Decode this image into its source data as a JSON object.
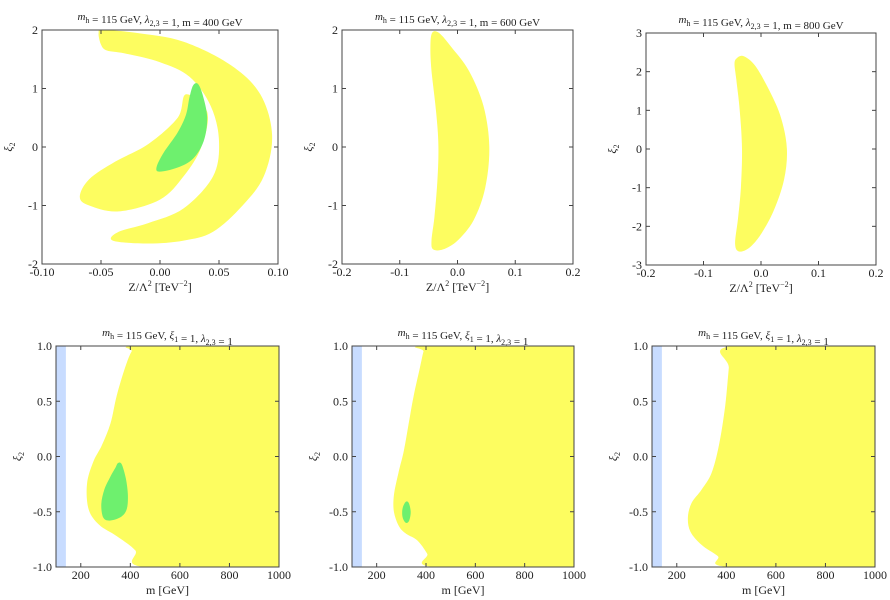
{
  "chart_data": [
    {
      "type": "contour",
      "title": "m_h = 115 GeV, λ_2,3 = 1, m = 400 GeV",
      "xlabel": "Z/Λ² [TeV⁻²]",
      "ylabel": "ξ2",
      "xlim": [
        -0.1,
        0.1
      ],
      "ylim": [
        -2,
        2
      ],
      "xticks": [
        "-0.10",
        "-0.05",
        "0.00",
        "0.05",
        "0.10"
      ],
      "xtick_values": [
        -0.1,
        -0.05,
        0,
        0.05,
        0.1
      ],
      "yticks": [
        "-2",
        "-1",
        "0",
        "1",
        "2"
      ],
      "ytick_values": [
        -2,
        -1,
        0,
        1,
        2
      ],
      "regions": [
        {
          "color": "#fdfd60",
          "points": [
            [
              -0.048,
              2.0
            ],
            [
              -0.02,
              1.95
            ],
            [
              0.02,
              1.8
            ],
            [
              0.06,
              1.4
            ],
            [
              0.085,
              0.9
            ],
            [
              0.095,
              0.2
            ],
            [
              0.088,
              -0.5
            ],
            [
              0.07,
              -1.0
            ],
            [
              0.045,
              -1.45
            ],
            [
              0.02,
              -1.6
            ],
            [
              -0.01,
              -1.65
            ],
            [
              -0.04,
              -1.6
            ],
            [
              -0.035,
              -1.45
            ],
            [
              -0.01,
              -1.3
            ],
            [
              0.02,
              -1.05
            ],
            [
              0.045,
              -0.5
            ],
            [
              0.05,
              0.1
            ],
            [
              0.043,
              0.7
            ],
            [
              0.025,
              1.2
            ],
            [
              0.0,
              1.45
            ],
            [
              -0.03,
              1.6
            ],
            [
              -0.045,
              1.65
            ],
            [
              -0.05,
              1.75
            ],
            [
              -0.052,
              1.95
            ]
          ]
        },
        {
          "color": "#fdfd60",
          "points": [
            [
              -0.068,
              -0.85
            ],
            [
              -0.06,
              -0.55
            ],
            [
              -0.038,
              -0.25
            ],
            [
              -0.01,
              0.05
            ],
            [
              0.015,
              0.5
            ],
            [
              0.022,
              0.9
            ],
            [
              0.04,
              0.6
            ],
            [
              0.035,
              0.0
            ],
            [
              0.02,
              -0.5
            ],
            [
              0.0,
              -0.9
            ],
            [
              -0.035,
              -1.1
            ],
            [
              -0.06,
              -1.0
            ]
          ]
        },
        {
          "color": "#6ef06e",
          "points": [
            [
              0.028,
              1.05
            ],
            [
              0.032,
              1.08
            ],
            [
              0.036,
              0.9
            ],
            [
              0.04,
              0.5
            ],
            [
              0.037,
              0.1
            ],
            [
              0.028,
              -0.2
            ],
            [
              0.015,
              -0.35
            ],
            [
              0.0,
              -0.42
            ],
            [
              -0.003,
              -0.35
            ],
            [
              0.003,
              -0.1
            ],
            [
              0.015,
              0.25
            ],
            [
              0.022,
              0.55
            ],
            [
              0.025,
              0.85
            ]
          ]
        }
      ]
    },
    {
      "type": "contour",
      "title": "m_h = 115 GeV, λ_2,3 = 1, m = 600 GeV",
      "xlabel": "Z/Λ² [TeV⁻²]",
      "ylabel": "ξ2",
      "xlim": [
        -0.2,
        0.2
      ],
      "ylim": [
        -2,
        2
      ],
      "xticks": [
        "-0.2",
        "-0.1",
        "0.0",
        "0.1",
        "0.2"
      ],
      "xtick_values": [
        -0.2,
        -0.1,
        0,
        0.1,
        0.2
      ],
      "yticks": [
        "-2",
        "-1",
        "0",
        "1",
        "2"
      ],
      "ytick_values": [
        -2,
        -1,
        0,
        1,
        2
      ],
      "regions": [
        {
          "color": "#fdfd60",
          "points": [
            [
              -0.044,
              1.95
            ],
            [
              -0.032,
              1.95
            ],
            [
              -0.01,
              1.7
            ],
            [
              0.02,
              1.3
            ],
            [
              0.045,
              0.7
            ],
            [
              0.055,
              0.0
            ],
            [
              0.048,
              -0.7
            ],
            [
              0.028,
              -1.25
            ],
            [
              0.0,
              -1.6
            ],
            [
              -0.025,
              -1.75
            ],
            [
              -0.042,
              -1.75
            ],
            [
              -0.045,
              -1.6
            ],
            [
              -0.04,
              -1.2
            ],
            [
              -0.035,
              -0.6
            ],
            [
              -0.033,
              0.0
            ],
            [
              -0.037,
              0.6
            ],
            [
              -0.045,
              1.3
            ],
            [
              -0.047,
              1.7
            ]
          ]
        }
      ]
    },
    {
      "type": "contour",
      "title": "m_h = 115 GeV, λ_2,3 = 1, m = 800 GeV",
      "xlabel": "Z/Λ² [TeV⁻²]",
      "ylabel": "ξ2",
      "xlim": [
        -0.2,
        0.2
      ],
      "ylim": [
        -3,
        3
      ],
      "xticks": [
        "-0.2",
        "-0.1",
        "0.0",
        "0.1",
        "0.2"
      ],
      "xtick_values": [
        -0.2,
        -0.1,
        0,
        0.1,
        0.2
      ],
      "yticks": [
        "-3",
        "-2",
        "-1",
        "0",
        "1",
        "2",
        "3"
      ],
      "ytick_values": [
        -3,
        -2,
        -1,
        0,
        1,
        2,
        3
      ],
      "regions": [
        {
          "color": "#fdfd60",
          "points": [
            [
              -0.042,
              2.35
            ],
            [
              -0.03,
              2.4
            ],
            [
              -0.01,
              2.15
            ],
            [
              0.015,
              1.5
            ],
            [
              0.035,
              0.8
            ],
            [
              0.045,
              0.0
            ],
            [
              0.04,
              -0.8
            ],
            [
              0.022,
              -1.6
            ],
            [
              0.0,
              -2.2
            ],
            [
              -0.02,
              -2.55
            ],
            [
              -0.038,
              -2.65
            ],
            [
              -0.045,
              -2.45
            ],
            [
              -0.04,
              -1.8
            ],
            [
              -0.035,
              -1.0
            ],
            [
              -0.033,
              0.0
            ],
            [
              -0.037,
              1.0
            ],
            [
              -0.043,
              1.8
            ],
            [
              -0.046,
              2.2
            ]
          ]
        }
      ]
    },
    {
      "type": "contour",
      "title": "m_h = 115 GeV, ξ_1 = 1, λ_2,3 = 1",
      "xlabel": "m [GeV]",
      "ylabel": "ξ2",
      "xlim": [
        100,
        1000
      ],
      "ylim": [
        -1,
        1
      ],
      "xticks": [
        "200",
        "400",
        "600",
        "800",
        "1000"
      ],
      "xtick_values": [
        200,
        400,
        600,
        800,
        1000
      ],
      "yticks": [
        "-1.0",
        "-0.5",
        "0.0",
        "0.5",
        "1.0"
      ],
      "ytick_values": [
        -1,
        -0.5,
        0,
        0.5,
        1
      ],
      "regions": [
        {
          "color": "#c8dcff",
          "points": [
            [
              100,
              -1
            ],
            [
              140,
              -1
            ],
            [
              140,
              1
            ],
            [
              100,
              1
            ]
          ]
        },
        {
          "color": "#fdfd60",
          "points": [
            [
              430,
              1
            ],
            [
              1000,
              1
            ],
            [
              1000,
              -1
            ],
            [
              455,
              -1
            ],
            [
              420,
              -0.85
            ],
            [
              345,
              -0.72
            ],
            [
              275,
              -0.62
            ],
            [
              232,
              -0.48
            ],
            [
              225,
              -0.25
            ],
            [
              250,
              -0.05
            ],
            [
              285,
              0.1
            ],
            [
              320,
              0.3
            ],
            [
              345,
              0.55
            ],
            [
              378,
              0.8
            ],
            [
              405,
              0.95
            ]
          ]
        },
        {
          "color": "#6ef06e",
          "points": [
            [
              350,
              -0.06
            ],
            [
              365,
              -0.07
            ],
            [
              382,
              -0.2
            ],
            [
              390,
              -0.35
            ],
            [
              385,
              -0.48
            ],
            [
              360,
              -0.55
            ],
            [
              315,
              -0.58
            ],
            [
              290,
              -0.55
            ],
            [
              283,
              -0.43
            ],
            [
              295,
              -0.3
            ],
            [
              320,
              -0.18
            ],
            [
              340,
              -0.1
            ]
          ]
        }
      ]
    },
    {
      "type": "contour",
      "title": "m_h = 115 GeV, ξ_1 = 1, λ_2,3 = 1",
      "xlabel": "m [GeV]",
      "ylabel": "ξ2",
      "xlim": [
        100,
        1000
      ],
      "ylim": [
        -1,
        1
      ],
      "xticks": [
        "200",
        "400",
        "600",
        "800",
        "1000"
      ],
      "xtick_values": [
        200,
        400,
        600,
        800,
        1000
      ],
      "yticks": [
        "-1.0",
        "-0.5",
        "0.0",
        "0.5",
        "1.0"
      ],
      "ytick_values": [
        -1,
        -0.5,
        0,
        0.5,
        1
      ],
      "regions": [
        {
          "color": "#c8dcff",
          "points": [
            [
              100,
              -1
            ],
            [
              140,
              -1
            ],
            [
              140,
              1
            ],
            [
              100,
              1
            ]
          ]
        },
        {
          "color": "#fdfd60",
          "points": [
            [
              402,
              1
            ],
            [
              1000,
              1
            ],
            [
              1000,
              -1
            ],
            [
              432,
              -1
            ],
            [
              405,
              -0.88
            ],
            [
              365,
              -0.76
            ],
            [
              320,
              -0.7
            ],
            [
              290,
              -0.63
            ],
            [
              270,
              -0.5
            ],
            [
              270,
              -0.35
            ],
            [
              288,
              -0.15
            ],
            [
              310,
              0.05
            ],
            [
              330,
              0.3
            ],
            [
              350,
              0.55
            ],
            [
              375,
              0.8
            ],
            [
              390,
              0.95
            ]
          ]
        },
        {
          "color": "#6ef06e",
          "points": [
            [
              318,
              -0.41
            ],
            [
              330,
              -0.42
            ],
            [
              338,
              -0.5
            ],
            [
              332,
              -0.58
            ],
            [
              318,
              -0.6
            ],
            [
              305,
              -0.55
            ],
            [
              305,
              -0.47
            ]
          ]
        }
      ]
    },
    {
      "type": "contour",
      "title": "m_h = 115 GeV, ξ_1 = 1, λ_2,3 = 1",
      "xlabel": "m [GeV]",
      "ylabel": "ξ2",
      "xlim": [
        100,
        1000
      ],
      "ylim": [
        -1,
        1
      ],
      "xticks": [
        "200",
        "400",
        "600",
        "800",
        "1000"
      ],
      "xtick_values": [
        200,
        400,
        600,
        800,
        1000
      ],
      "yticks": [
        "-1.0",
        "-0.5",
        "0.0",
        "0.5",
        "1.0"
      ],
      "ytick_values": [
        -1,
        -0.5,
        0,
        0.5,
        1
      ],
      "regions": [
        {
          "color": "#c8dcff",
          "points": [
            [
              100,
              -1
            ],
            [
              140,
              -1
            ],
            [
              140,
              1
            ],
            [
              100,
              1
            ]
          ]
        },
        {
          "color": "#fdfd60",
          "points": [
            [
              420,
              1
            ],
            [
              1000,
              1
            ],
            [
              1000,
              -1
            ],
            [
              412,
              -1
            ],
            [
              365,
              -0.9
            ],
            [
              300,
              -0.8
            ],
            [
              255,
              -0.68
            ],
            [
              245,
              -0.55
            ],
            [
              260,
              -0.42
            ],
            [
              300,
              -0.3
            ],
            [
              340,
              -0.15
            ],
            [
              370,
              0.1
            ],
            [
              395,
              0.45
            ],
            [
              410,
              0.8
            ]
          ]
        }
      ]
    }
  ]
}
